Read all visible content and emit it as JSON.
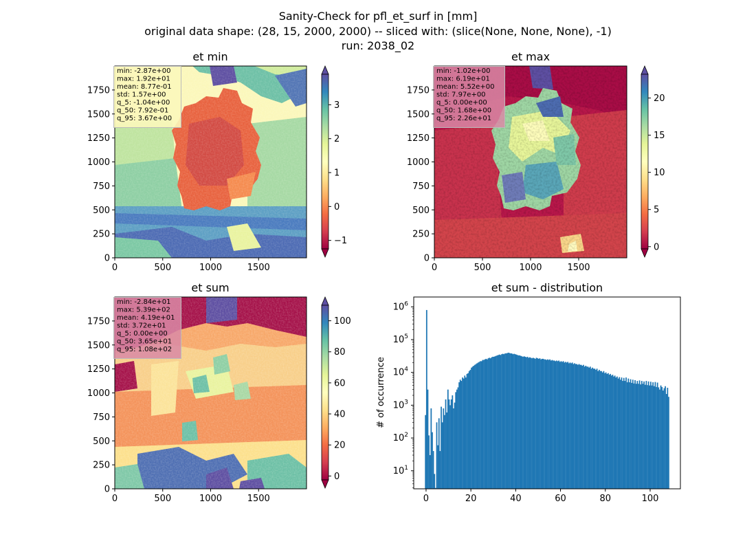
{
  "suptitle": {
    "line1": "Sanity-Check for pfl_et_surf in [mm]",
    "line2": "original data shape: (28, 15, 2000, 2000) -- sliced with: (slice(None, None, None), -1)",
    "line3": "run: 2038_02"
  },
  "colors": {
    "hist_bar": "#1f77b4",
    "spectral": [
      "#9e0142",
      "#d53e4f",
      "#f46d43",
      "#fdae61",
      "#fee08b",
      "#ffffbf",
      "#e6f598",
      "#abdda4",
      "#66c2a5",
      "#3288bd",
      "#5e4fa2"
    ]
  },
  "chart_data": [
    {
      "type": "heatmap",
      "title": "et min",
      "xlim": [
        0,
        2000
      ],
      "ylim": [
        0,
        2000
      ],
      "x_ticks": [
        0,
        500,
        1000,
        1500
      ],
      "y_ticks": [
        0,
        250,
        500,
        750,
        1000,
        1250,
        1500,
        1750
      ],
      "colorbar": {
        "range": [
          -1.25,
          3.9
        ],
        "ticks": [
          -1,
          0,
          1,
          2,
          3
        ],
        "extend": "both",
        "cmap": "Spectral"
      },
      "stats": [
        "min: -2.87e+00",
        "max: 1.92e+01",
        "mean: 8.77e-01",
        "std: 1.57e+00",
        "q_5: -1.04e+00",
        "q_50: 7.92e-01",
        "q_95: 3.67e+00"
      ],
      "stats_box_color": "#fbf7bb"
    },
    {
      "type": "heatmap",
      "title": "et max",
      "xlim": [
        0,
        2000
      ],
      "ylim": [
        0,
        2000
      ],
      "x_ticks": [
        0,
        500,
        1000,
        1500
      ],
      "y_ticks": [
        0,
        250,
        500,
        750,
        1000,
        1250,
        1500,
        1750
      ],
      "colorbar": {
        "range": [
          -0.3,
          23.2
        ],
        "ticks": [
          0,
          5,
          10,
          15,
          20
        ],
        "extend": "both",
        "cmap": "Spectral"
      },
      "stats": [
        "min: -1.02e+00",
        "max: 6.19e+01",
        "mean: 5.52e+00",
        "std: 7.97e+00",
        "q_5: 0.00e+00",
        "q_50: 1.68e+00",
        "q_95: 2.26e+01"
      ],
      "stats_box_color": "#d98aa6"
    },
    {
      "type": "heatmap",
      "title": "et sum",
      "xlim": [
        0,
        2000
      ],
      "ylim": [
        0,
        2000
      ],
      "x_ticks": [
        0,
        500,
        1000,
        1500
      ],
      "y_ticks": [
        0,
        250,
        500,
        750,
        1000,
        1250,
        1500,
        1750
      ],
      "colorbar": {
        "range": [
          -2.5,
          110
        ],
        "ticks": [
          0,
          20,
          40,
          60,
          80,
          100
        ],
        "extend": "both",
        "cmap": "Spectral"
      },
      "stats": [
        "min: -2.84e+01",
        "max: 5.39e+02",
        "mean: 4.19e+01",
        "std: 3.72e+01",
        "q_5: 0.00e+00",
        "q_50: 3.65e+01",
        "q_95: 1.08e+02"
      ],
      "stats_box_color": "#d98aa6"
    },
    {
      "type": "bar",
      "title": "et sum - distribution",
      "xlabel": "",
      "ylabel": "# of occurrence",
      "xlim": [
        -5.5,
        113.5
      ],
      "ylim_log10": [
        0.45,
        6.3
      ],
      "y_scale": "log",
      "x_ticks": [
        0,
        20,
        40,
        60,
        80,
        100
      ],
      "y_ticks": [
        "10^1",
        "10^2",
        "10^3",
        "10^4",
        "10^5",
        "10^6"
      ],
      "bin_width": 0.5,
      "x_start": -0.5,
      "values": [
        500,
        800000,
        3000,
        120,
        30,
        800,
        150,
        40,
        8,
        3,
        300,
        60,
        400,
        40,
        900,
        300,
        800,
        500,
        1500,
        600,
        3000,
        1500,
        1000,
        1500,
        2000,
        800,
        1200,
        2500,
        3000,
        3500,
        5000,
        6000,
        5500,
        7000,
        6500,
        8000,
        7000,
        9000,
        9500,
        11000,
        12000,
        14000,
        15000,
        16000,
        17000,
        18000,
        19000,
        20000,
        21000,
        22000,
        22000,
        24000,
        24000,
        25000,
        26000,
        25000,
        27000,
        28000,
        27000,
        29000,
        30000,
        30000,
        31000,
        32000,
        33000,
        34000,
        35000,
        34000,
        36000,
        37000,
        36000,
        38000,
        38000,
        39000,
        40000,
        39000,
        38000,
        38000,
        36000,
        37000,
        36000,
        35000,
        34000,
        33000,
        33000,
        32000,
        31000,
        30000,
        31000,
        30000,
        29000,
        30000,
        28000,
        29000,
        28000,
        27000,
        28000,
        27000,
        26000,
        28000,
        27000,
        26000,
        27000,
        25000,
        26000,
        26000,
        25000,
        25000,
        24000,
        25000,
        24000,
        25000,
        23000,
        24000,
        23000,
        23000,
        22000,
        23000,
        22000,
        23000,
        21000,
        22000,
        21000,
        22000,
        20000,
        21000,
        20000,
        21000,
        19000,
        20000,
        19000,
        20000,
        18000,
        19000,
        18000,
        18000,
        17000,
        18000,
        17000,
        17000,
        16000,
        17000,
        15000,
        16000,
        15000,
        15000,
        14000,
        15000,
        13000,
        14000,
        13000,
        13000,
        12000,
        13000,
        11000,
        12000,
        11000,
        11000,
        10000,
        11000,
        9500,
        10000,
        9000,
        9500,
        8500,
        9000,
        8000,
        8500,
        7500,
        8000,
        7000,
        7500,
        6500,
        7200,
        6000,
        7000,
        5500,
        6800,
        5500,
        7000,
        5000,
        6500,
        5000,
        6200,
        4800,
        6000,
        4600,
        5800,
        4500,
        5500,
        4500,
        5700,
        4300,
        5500,
        4500,
        5300,
        4200,
        5500,
        4100,
        5300,
        4000,
        5200,
        4000,
        5000,
        3800,
        5100,
        3600,
        4900,
        3500,
        3000,
        4000,
        3600,
        2800,
        3300,
        3800,
        2200,
        3400,
        1800
      ]
    }
  ]
}
